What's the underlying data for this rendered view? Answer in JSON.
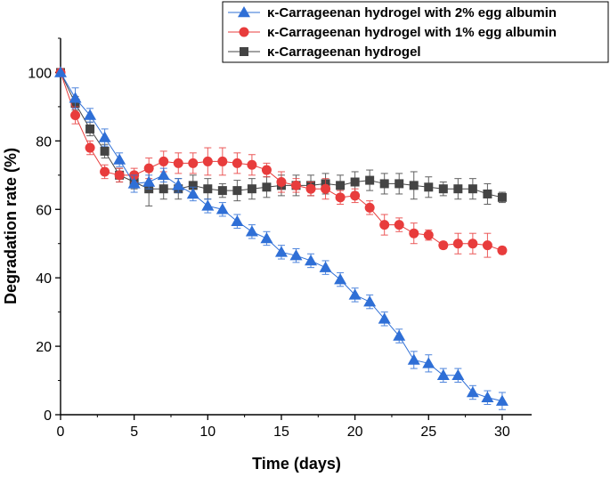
{
  "chart_data": {
    "type": "line",
    "title": "",
    "xlabel": "Time (days)",
    "ylabel": "Degradation rate (%)",
    "xlim": [
      0,
      32
    ],
    "ylim": [
      0,
      110
    ],
    "xticks": [
      0,
      5,
      10,
      15,
      20,
      25,
      30
    ],
    "yticks": [
      0,
      20,
      40,
      60,
      80,
      100
    ],
    "legend_position": "top-right",
    "series": [
      {
        "name": "κ-Carrageenan hydrogel with 2% egg albumin",
        "color": "#2f6fd6",
        "marker": "triangle",
        "x": [
          0,
          1,
          2,
          3,
          4,
          5,
          6,
          7,
          8,
          9,
          10,
          11,
          12,
          13,
          14,
          15,
          16,
          17,
          18,
          19,
          20,
          21,
          22,
          23,
          24,
          25,
          26,
          27,
          28,
          29,
          30
        ],
        "values": [
          100,
          92.5,
          87.5,
          81,
          74.5,
          67.5,
          68,
          70,
          67,
          64.5,
          61,
          60,
          56.5,
          53.5,
          51.5,
          47.5,
          46.5,
          45,
          43,
          39.5,
          35,
          33,
          28,
          23,
          16,
          15,
          11.5,
          11.5,
          6.5,
          5,
          4
        ],
        "errors": [
          0,
          3,
          2,
          2.5,
          2,
          2.5,
          2,
          2,
          2,
          2,
          2,
          2,
          2,
          2,
          2,
          2,
          2,
          2,
          2,
          2,
          2,
          2,
          2,
          2,
          2.5,
          2.5,
          2,
          2,
          2,
          2,
          2.5
        ]
      },
      {
        "name": "κ-Carrageenan hydrogel with 1% egg albumin",
        "color": "#e83c3c",
        "marker": "circle",
        "x": [
          0,
          1,
          2,
          3,
          4,
          5,
          6,
          7,
          8,
          9,
          10,
          11,
          12,
          13,
          14,
          15,
          16,
          17,
          18,
          19,
          20,
          21,
          22,
          23,
          24,
          25,
          26,
          27,
          28,
          29,
          30
        ],
        "values": [
          100,
          87.5,
          78,
          71,
          70,
          70,
          72,
          74,
          73.5,
          73.5,
          74,
          74,
          73.5,
          73,
          71.5,
          68,
          67,
          66,
          66,
          63.5,
          64,
          60.5,
          55.5,
          55.5,
          53,
          52.5,
          49.5,
          50,
          50,
          49.5,
          48
        ],
        "errors": [
          0,
          2.5,
          2,
          2,
          2,
          2,
          3,
          3,
          3,
          3,
          4,
          4,
          3,
          3,
          2,
          3,
          2,
          2,
          3,
          2,
          2,
          2,
          3,
          2,
          3,
          1.5,
          1,
          3,
          3,
          3.5,
          1
        ]
      },
      {
        "name": "κ-Carrageenan hydrogel",
        "color": "#444444",
        "marker": "square",
        "x": [
          0,
          1,
          2,
          3,
          4,
          5,
          6,
          7,
          8,
          9,
          10,
          11,
          12,
          13,
          14,
          15,
          16,
          17,
          18,
          19,
          20,
          21,
          22,
          23,
          24,
          25,
          26,
          27,
          28,
          29,
          30
        ],
        "values": [
          100,
          91,
          83.5,
          77,
          70,
          68,
          66,
          66,
          66,
          67,
          66,
          65.5,
          65.5,
          66,
          66.5,
          67,
          67,
          67,
          67.5,
          67,
          68,
          68.5,
          67.5,
          67.5,
          67,
          66.5,
          66,
          66,
          66,
          64.5,
          63.5
        ],
        "errors": [
          0,
          2,
          2,
          2,
          2,
          2,
          5,
          3,
          3,
          3,
          3,
          2,
          3,
          3,
          3,
          3,
          3,
          3,
          3,
          3,
          3,
          3,
          3,
          3,
          4,
          3,
          2,
          3,
          3,
          3,
          1.5
        ]
      }
    ]
  }
}
